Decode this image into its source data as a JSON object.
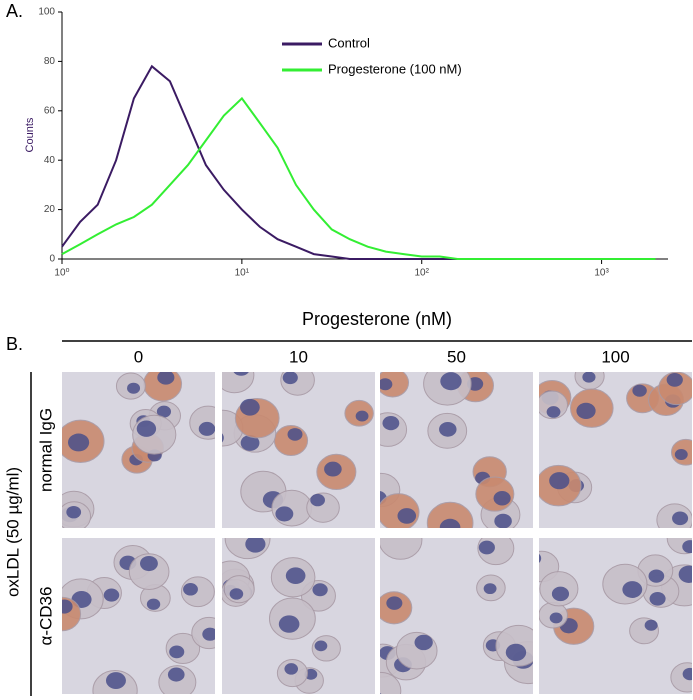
{
  "chart_data": {
    "type": "line",
    "panel_label": "A.",
    "y_label": "Counts",
    "xscale": "log",
    "x": [
      1,
      1.26,
      1.58,
      2,
      2.51,
      3.16,
      3.98,
      5.01,
      6.31,
      7.94,
      10,
      12.6,
      15.8,
      20,
      25.1,
      31.6,
      39.8,
      50.1,
      63.1,
      79.4,
      100,
      126,
      158,
      200,
      316,
      501,
      794,
      1259,
      1995
    ],
    "series": [
      {
        "name": "Control",
        "color": "#3b1b63",
        "values": [
          5,
          15,
          22,
          40,
          65,
          78,
          72,
          55,
          38,
          28,
          20,
          13,
          8,
          5,
          2,
          1,
          0,
          0,
          0,
          0,
          0,
          0,
          0,
          0,
          0,
          0,
          0,
          0,
          0
        ]
      },
      {
        "name": "Progesterone (100 nM)",
        "color": "#33ee33",
        "values": [
          2,
          6,
          10,
          14,
          17,
          22,
          30,
          38,
          48,
          58,
          65,
          55,
          45,
          30,
          20,
          12,
          8,
          5,
          3,
          2,
          1,
          1,
          0,
          0,
          0,
          0,
          0,
          0,
          0
        ]
      }
    ],
    "xlim": [
      1,
      2340
    ],
    "ylim": [
      0,
      100
    ],
    "xticks": [
      {
        "value": 1,
        "label": "10⁰"
      },
      {
        "value": 10,
        "label": "10¹"
      },
      {
        "value": 100,
        "label": "10²"
      },
      {
        "value": 1000,
        "label": "10³"
      }
    ],
    "yticks": [
      0,
      20,
      40,
      60,
      80,
      100
    ],
    "legend": "top-right"
  },
  "panel_b": {
    "panel_label": "B.",
    "header": "Progesterone (nM)",
    "columns": [
      "0",
      "10",
      "50",
      "100"
    ],
    "rows": [
      "normal IgG",
      "α-CD36"
    ],
    "side_label": "oxLDL (50 µg/ml)"
  }
}
